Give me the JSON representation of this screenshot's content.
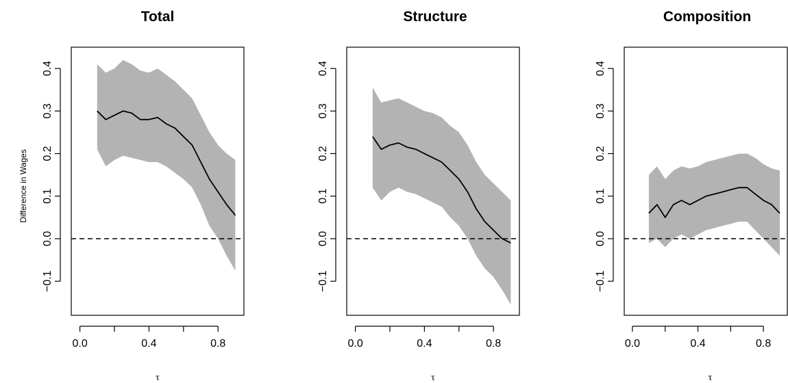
{
  "figure": {
    "ylabel": "Difference in Wages",
    "xlabel": "τ"
  },
  "colors": {
    "band": "#b3b3b3",
    "line": "#000000",
    "frame": "#000000"
  },
  "chart_data": [
    {
      "type": "line",
      "title": "Total",
      "xlabel": "τ",
      "ylabel": "Difference in Wages",
      "xlim": [
        0.0,
        0.9
      ],
      "ylim": [
        -0.1,
        0.4
      ],
      "xticks": [
        "0.0",
        "0.4",
        "0.8"
      ],
      "yticks": [
        "-0.1",
        "0.0",
        "0.1",
        "0.2",
        "0.3",
        "0.4"
      ],
      "reference_line": 0.0,
      "x": [
        0.1,
        0.15,
        0.2,
        0.25,
        0.3,
        0.35,
        0.4,
        0.45,
        0.5,
        0.55,
        0.6,
        0.65,
        0.7,
        0.75,
        0.8,
        0.85,
        0.9
      ],
      "series": [
        {
          "values": [
            0.3,
            0.28,
            0.29,
            0.3,
            0.295,
            0.28,
            0.28,
            0.285,
            0.27,
            0.26,
            0.24,
            0.22,
            0.18,
            0.14,
            0.11,
            0.08,
            0.055
          ],
          "lower": [
            0.21,
            0.17,
            0.185,
            0.195,
            0.19,
            0.185,
            0.18,
            0.18,
            0.17,
            0.155,
            0.14,
            0.12,
            0.08,
            0.03,
            0.0,
            -0.04,
            -0.075
          ],
          "upper": [
            0.41,
            0.39,
            0.4,
            0.42,
            0.41,
            0.395,
            0.39,
            0.4,
            0.385,
            0.37,
            0.35,
            0.33,
            0.29,
            0.25,
            0.22,
            0.2,
            0.185
          ]
        }
      ],
      "grid": false
    },
    {
      "type": "line",
      "title": "Structure",
      "xlabel": "τ",
      "ylabel": "",
      "xlim": [
        0.0,
        0.9
      ],
      "ylim": [
        -0.1,
        0.4
      ],
      "xticks": [
        "0.0",
        "0.4",
        "0.8"
      ],
      "yticks": [
        "-0.1",
        "0.0",
        "0.1",
        "0.2",
        "0.3",
        "0.4"
      ],
      "reference_line": 0.0,
      "x": [
        0.1,
        0.15,
        0.2,
        0.25,
        0.3,
        0.35,
        0.4,
        0.45,
        0.5,
        0.55,
        0.6,
        0.65,
        0.7,
        0.75,
        0.8,
        0.85,
        0.9
      ],
      "series": [
        {
          "values": [
            0.24,
            0.21,
            0.22,
            0.225,
            0.215,
            0.21,
            0.2,
            0.19,
            0.18,
            0.16,
            0.14,
            0.11,
            0.07,
            0.04,
            0.02,
            0.0,
            -0.01
          ],
          "lower": [
            0.12,
            0.09,
            0.11,
            0.12,
            0.11,
            0.105,
            0.095,
            0.085,
            0.075,
            0.05,
            0.03,
            0.0,
            -0.04,
            -0.07,
            -0.09,
            -0.12,
            -0.155
          ],
          "upper": [
            0.355,
            0.32,
            0.325,
            0.33,
            0.32,
            0.31,
            0.3,
            0.295,
            0.285,
            0.265,
            0.25,
            0.22,
            0.18,
            0.15,
            0.13,
            0.11,
            0.09
          ]
        }
      ],
      "grid": false
    },
    {
      "type": "line",
      "title": "Composition",
      "xlabel": "τ",
      "ylabel": "",
      "xlim": [
        0.0,
        0.9
      ],
      "ylim": [
        -0.1,
        0.4
      ],
      "xticks": [
        "0.0",
        "0.4",
        "0.8"
      ],
      "yticks": [
        "-0.1",
        "0.0",
        "0.1",
        "0.2",
        "0.3",
        "0.4"
      ],
      "reference_line": 0.0,
      "x": [
        0.1,
        0.15,
        0.2,
        0.25,
        0.3,
        0.35,
        0.4,
        0.45,
        0.5,
        0.55,
        0.6,
        0.65,
        0.7,
        0.75,
        0.8,
        0.85,
        0.9
      ],
      "series": [
        {
          "values": [
            0.06,
            0.08,
            0.05,
            0.08,
            0.09,
            0.08,
            0.09,
            0.1,
            0.105,
            0.11,
            0.115,
            0.12,
            0.12,
            0.105,
            0.09,
            0.08,
            0.06
          ],
          "lower": [
            -0.01,
            0.0,
            -0.02,
            0.0,
            0.01,
            0.0,
            0.01,
            0.02,
            0.025,
            0.03,
            0.035,
            0.04,
            0.04,
            0.02,
            0.0,
            -0.02,
            -0.04
          ],
          "upper": [
            0.15,
            0.17,
            0.14,
            0.16,
            0.17,
            0.165,
            0.17,
            0.18,
            0.185,
            0.19,
            0.195,
            0.2,
            0.2,
            0.19,
            0.175,
            0.165,
            0.16
          ]
        }
      ],
      "grid": false
    }
  ]
}
